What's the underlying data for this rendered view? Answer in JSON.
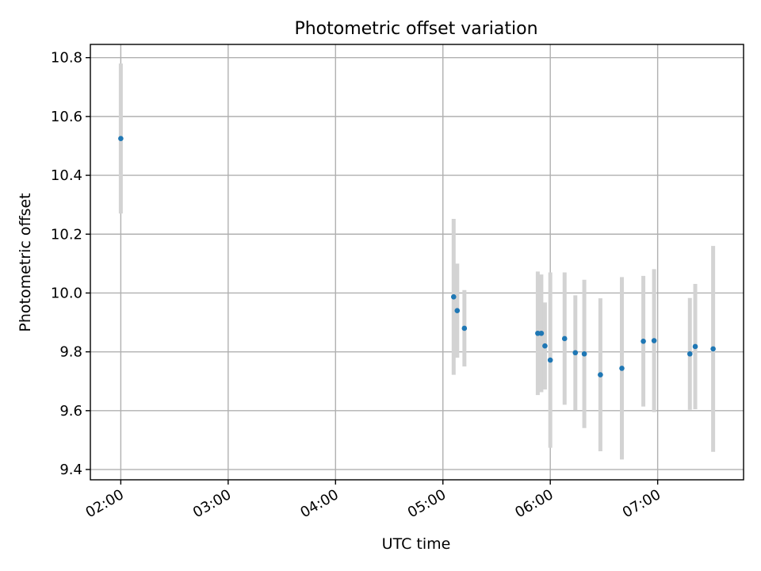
{
  "chart_data": {
    "type": "scatter",
    "title": "Photometric offset variation",
    "xlabel": "UTC time",
    "ylabel": "Photometric offset",
    "xticks": [
      "02:00",
      "03:00",
      "04:00",
      "05:00",
      "06:00",
      "07:00"
    ],
    "xtick_hours": [
      2,
      3,
      4,
      5,
      6,
      7
    ],
    "yticks": [
      "9.4",
      "9.6",
      "9.8",
      "10.0",
      "10.2",
      "10.4",
      "10.6",
      "10.8"
    ],
    "ytick_values": [
      9.4,
      9.6,
      9.8,
      10.0,
      10.2,
      10.4,
      10.6,
      10.8
    ],
    "xlim": [
      "01:43",
      "07:48"
    ],
    "ylim": [
      9.365,
      10.845
    ],
    "grid": true,
    "point_color": "#1f77b4",
    "errorbar_color": "#d3d3d3",
    "points": [
      {
        "x": "02:00",
        "y": 10.525,
        "err": 0.255
      },
      {
        "x": "05:06",
        "y": 9.987,
        "err": 0.265
      },
      {
        "x": "05:08",
        "y": 9.94,
        "err": 0.16
      },
      {
        "x": "05:12",
        "y": 9.88,
        "err": 0.13
      },
      {
        "x": "05:53",
        "y": 9.863,
        "err": 0.21
      },
      {
        "x": "05:55",
        "y": 9.863,
        "err": 0.2
      },
      {
        "x": "05:57",
        "y": 9.82,
        "err": 0.148
      },
      {
        "x": "06:00",
        "y": 9.772,
        "err": 0.298
      },
      {
        "x": "06:08",
        "y": 9.845,
        "err": 0.225
      },
      {
        "x": "06:14",
        "y": 9.797,
        "err": 0.195
      },
      {
        "x": "06:19",
        "y": 9.793,
        "err": 0.252
      },
      {
        "x": "06:28",
        "y": 9.722,
        "err": 0.26
      },
      {
        "x": "06:40",
        "y": 9.744,
        "err": 0.31
      },
      {
        "x": "06:52",
        "y": 9.836,
        "err": 0.222
      },
      {
        "x": "06:58",
        "y": 9.838,
        "err": 0.243
      },
      {
        "x": "07:18",
        "y": 9.793,
        "err": 0.19
      },
      {
        "x": "07:21",
        "y": 9.818,
        "err": 0.213
      },
      {
        "x": "07:31",
        "y": 9.81,
        "err": 0.35
      }
    ]
  }
}
